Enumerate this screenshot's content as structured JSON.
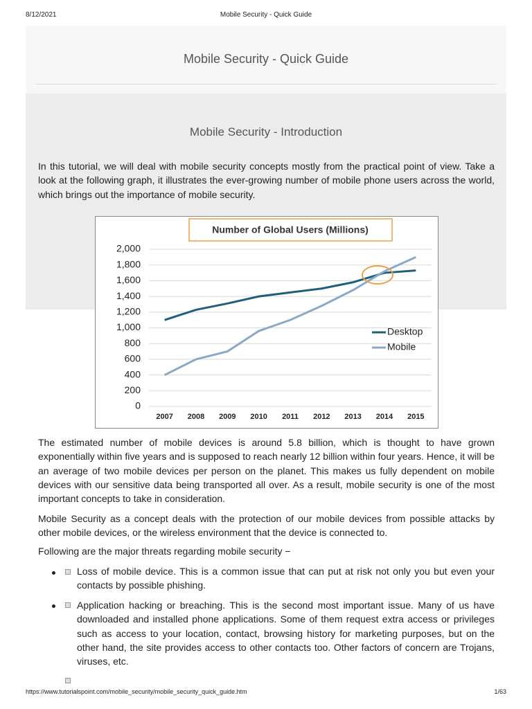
{
  "header": {
    "date": "8/12/2021",
    "title": "Mobile Security - Quick Guide"
  },
  "page_title": "Mobile Security - Quick Guide",
  "section_title": "Mobile Security - Introduction",
  "intro": "In this tutorial, we will deal with mobile security concepts mostly from the practical point of view. Take a look at the following graph, it illustrates the ever-growing number of mobile phone users across the world, which brings out the importance of mobile security.",
  "chart_data": {
    "type": "line",
    "title": "Number of Global Users (Millions)",
    "categories": [
      "2007",
      "2008",
      "2009",
      "2010",
      "2011",
      "2012",
      "2013",
      "2014",
      "2015"
    ],
    "series": [
      {
        "name": "Desktop",
        "color": "#1f5f7a",
        "values": [
          1100,
          1230,
          1310,
          1400,
          1450,
          1500,
          1580,
          1700,
          1730
        ]
      },
      {
        "name": "Mobile",
        "color": "#8aa9c6",
        "values": [
          400,
          600,
          700,
          960,
          1100,
          1280,
          1480,
          1720,
          1900
        ]
      }
    ],
    "ylim": [
      0,
      2000
    ],
    "yticks": [
      0,
      200,
      400,
      600,
      800,
      {
        "value": 1000,
        "label": "1,000"
      },
      {
        "value": 1200,
        "label": "1,200"
      },
      {
        "value": 1400,
        "label": "1,400"
      },
      {
        "value": 1600,
        "label": "1,600"
      },
      {
        "value": 1800,
        "label": "1,800"
      },
      {
        "value": 2000,
        "label": "2,000"
      }
    ],
    "grid": true,
    "legend": "right"
  },
  "paragraphs": [
    "The estimated number of mobile devices is around 5.8 billion, which is thought to have grown exponentially within five years and is supposed to reach nearly 12 billion within four years. Hence, it will be an average of two mobile devices per person on the planet. This makes us fully dependent on mobile devices with our sensitive data being transported all over. As a result, mobile security is one of the most important concepts to take in consideration.",
    "Mobile Security as a concept deals with the protection of our mobile devices from possible attacks by other mobile devices, or the wireless environment that the device is connected to.",
    "Following are the major threats regarding mobile security −"
  ],
  "bullets": [
    "Loss of mobile device. This is a common issue that can put at risk not only you but even your contacts by possible phishing.",
    "Application hacking or breaching. This is the second most important issue. Many of us have downloaded and installed phone applications. Some of them request extra access or privileges such as access to your location, contact, browsing history for marketing purposes, but on the other hand, the site provides access to other contacts too. Other factors of concern are Trojans, viruses, etc."
  ],
  "footer": {
    "url": "https://www.tutorialspoint.com/mobile_security/mobile_security_quick_guide.htm",
    "page": "1/63"
  }
}
